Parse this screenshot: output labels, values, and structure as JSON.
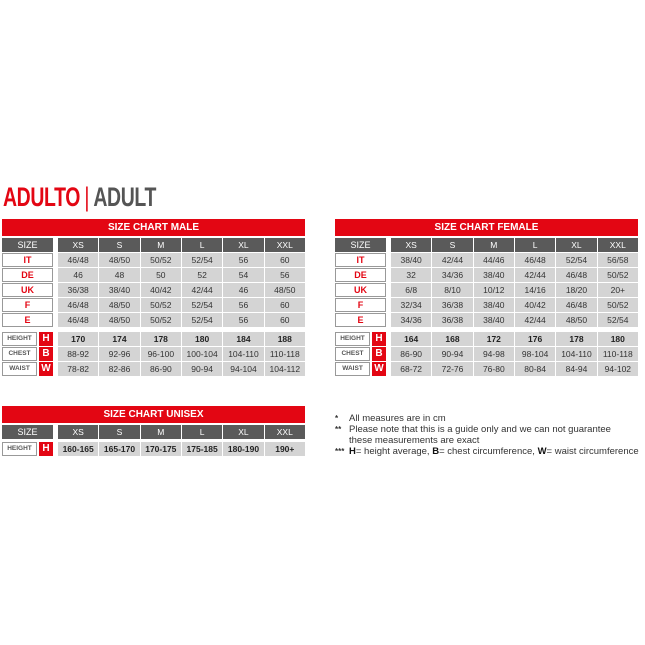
{
  "heading": {
    "primary": "ADULTO",
    "separator": "|",
    "secondary": "ADULT"
  },
  "colors": {
    "accent": "#e30613",
    "header": "#5a5a5a",
    "cell": "#d4d4d4"
  },
  "sizes": [
    "XS",
    "S",
    "M",
    "L",
    "XL",
    "XXL"
  ],
  "size_label": "SIZE",
  "male": {
    "title": "SIZE CHART MALE",
    "size_rows": [
      {
        "label": "IT",
        "values": [
          "46/48",
          "48/50",
          "50/52",
          "52/54",
          "56",
          "60"
        ]
      },
      {
        "label": "DE",
        "values": [
          "46",
          "48",
          "50",
          "52",
          "54",
          "56"
        ]
      },
      {
        "label": "UK",
        "values": [
          "36/38",
          "38/40",
          "40/42",
          "42/44",
          "46",
          "48/50"
        ]
      },
      {
        "label": "F",
        "values": [
          "46/48",
          "48/50",
          "50/52",
          "52/54",
          "56",
          "60"
        ]
      },
      {
        "label": "E",
        "values": [
          "46/48",
          "48/50",
          "50/52",
          "52/54",
          "56",
          "60"
        ]
      }
    ],
    "measure_rows": [
      {
        "label": "HEIGHT",
        "letter": "H",
        "values": [
          "170",
          "174",
          "178",
          "180",
          "184",
          "188"
        ]
      },
      {
        "label": "CHEST",
        "letter": "B",
        "values": [
          "88-92",
          "92-96",
          "96-100",
          "100-104",
          "104-110",
          "110-118"
        ]
      },
      {
        "label": "WAIST",
        "letter": "W",
        "values": [
          "78-82",
          "82-86",
          "86-90",
          "90-94",
          "94-104",
          "104-112"
        ]
      }
    ]
  },
  "female": {
    "title": "SIZE CHART FEMALE",
    "size_rows": [
      {
        "label": "IT",
        "values": [
          "38/40",
          "42/44",
          "44/46",
          "46/48",
          "52/54",
          "56/58"
        ]
      },
      {
        "label": "DE",
        "values": [
          "32",
          "34/36",
          "38/40",
          "42/44",
          "46/48",
          "50/52"
        ]
      },
      {
        "label": "UK",
        "values": [
          "6/8",
          "8/10",
          "10/12",
          "14/16",
          "18/20",
          "20+"
        ]
      },
      {
        "label": "F",
        "values": [
          "32/34",
          "36/38",
          "38/40",
          "40/42",
          "46/48",
          "50/52"
        ]
      },
      {
        "label": "E",
        "values": [
          "34/36",
          "36/38",
          "38/40",
          "42/44",
          "48/50",
          "52/54"
        ]
      }
    ],
    "measure_rows": [
      {
        "label": "HEIGHT",
        "letter": "H",
        "values": [
          "164",
          "168",
          "172",
          "176",
          "178",
          "180"
        ]
      },
      {
        "label": "CHEST",
        "letter": "B",
        "values": [
          "86-90",
          "90-94",
          "94-98",
          "98-104",
          "104-110",
          "110-118"
        ]
      },
      {
        "label": "WAIST",
        "letter": "W",
        "values": [
          "68-72",
          "72-76",
          "76-80",
          "80-84",
          "84-94",
          "94-102"
        ]
      }
    ]
  },
  "unisex": {
    "title": "SIZE CHART UNISEX",
    "size_rows": [],
    "measure_rows": [
      {
        "label": "HEIGHT",
        "letter": "H",
        "values": [
          "160-165",
          "165-170",
          "170-175",
          "175-185",
          "180-190",
          "190+"
        ]
      }
    ]
  },
  "notes": [
    {
      "marker": "*",
      "text": "All measures are in cm"
    },
    {
      "marker": "**",
      "text": "Please note that this is a guide only and we can not guarantee these measurements are exact"
    },
    {
      "marker": "***",
      "parts": [
        {
          "b": "H",
          "t": "= height average, "
        },
        {
          "b": "B",
          "t": "= chest circumference, "
        },
        {
          "b": "W",
          "t": "= waist circumference"
        }
      ]
    }
  ]
}
